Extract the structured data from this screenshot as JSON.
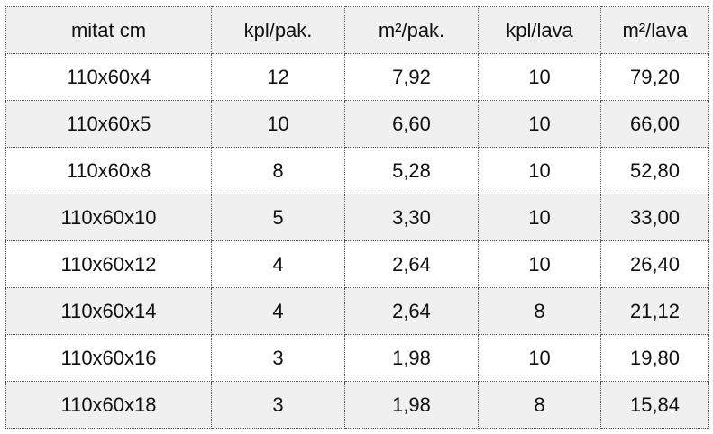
{
  "table": {
    "headers": [
      "mitat cm",
      "kpl/pak.",
      "m²/pak.",
      "kpl/lava",
      "m²/lava"
    ],
    "rows": [
      [
        "110x60x4",
        "12",
        "7,92",
        "10",
        "79,20"
      ],
      [
        "110x60x5",
        "10",
        "6,60",
        "10",
        "66,00"
      ],
      [
        "110x60x8",
        "8",
        "5,28",
        "10",
        "52,80"
      ],
      [
        "110x60x10",
        "5",
        "3,30",
        "10",
        "33,00"
      ],
      [
        "110x60x12",
        "4",
        "2,64",
        "10",
        "26,40"
      ],
      [
        "110x60x14",
        "4",
        "2,64",
        "8",
        "21,12"
      ],
      [
        "110x60x16",
        "3",
        "1,98",
        "10",
        "19,80"
      ],
      [
        "110x60x18",
        "3",
        "1,98",
        "8",
        "15,84"
      ]
    ]
  }
}
